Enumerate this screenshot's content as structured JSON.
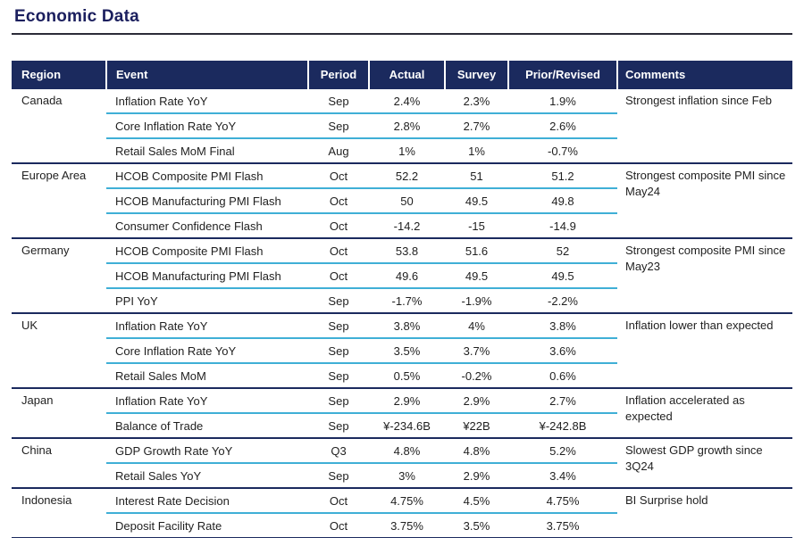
{
  "page": {
    "title": "Economic Data"
  },
  "colors": {
    "header_bg": "#1B2A5E",
    "header_text": "#FFFFFF",
    "group_divider": "#1B2A5E",
    "row_divider": "#3FAFD6",
    "title_text": "#1B1F5E",
    "title_rule": "#2B2B38",
    "body_text": "#1F1F1F"
  },
  "table": {
    "columns": [
      "Region",
      "Event",
      "Period",
      "Actual",
      "Survey",
      "Prior/Revised",
      "Comments"
    ],
    "groups": [
      {
        "region": "Canada",
        "comment": "Strongest inflation since Feb",
        "rows": [
          {
            "event": "Inflation Rate YoY",
            "period": "Sep",
            "actual": "2.4%",
            "survey": "2.3%",
            "prior": "1.9%"
          },
          {
            "event": "Core Inflation Rate YoY",
            "period": "Sep",
            "actual": "2.8%",
            "survey": "2.7%",
            "prior": "2.6%"
          },
          {
            "event": "Retail Sales MoM Final",
            "period": "Aug",
            "actual": "1%",
            "survey": "1%",
            "prior": "-0.7%"
          }
        ]
      },
      {
        "region": "Europe Area",
        "comment": "Strongest composite PMI since May24",
        "rows": [
          {
            "event": "HCOB Composite PMI Flash",
            "period": "Oct",
            "actual": "52.2",
            "survey": "51",
            "prior": "51.2"
          },
          {
            "event": "HCOB Manufacturing PMI Flash",
            "period": "Oct",
            "actual": "50",
            "survey": "49.5",
            "prior": "49.8"
          },
          {
            "event": "Consumer Confidence Flash",
            "period": "Oct",
            "actual": "-14.2",
            "survey": "-15",
            "prior": "-14.9"
          }
        ]
      },
      {
        "region": "Germany",
        "comment": "Strongest composite PMI since May23",
        "rows": [
          {
            "event": "HCOB Composite PMI Flash",
            "period": "Oct",
            "actual": "53.8",
            "survey": "51.6",
            "prior": "52"
          },
          {
            "event": "HCOB Manufacturing PMI Flash",
            "period": "Oct",
            "actual": "49.6",
            "survey": "49.5",
            "prior": "49.5"
          },
          {
            "event": "PPI YoY",
            "period": "Sep",
            "actual": "-1.7%",
            "survey": "-1.9%",
            "prior": "-2.2%"
          }
        ]
      },
      {
        "region": "UK",
        "comment": "Inflation lower than expected",
        "rows": [
          {
            "event": "Inflation Rate YoY",
            "period": "Sep",
            "actual": "3.8%",
            "survey": "4%",
            "prior": "3.8%"
          },
          {
            "event": "Core Inflation Rate YoY",
            "period": "Sep",
            "actual": "3.5%",
            "survey": "3.7%",
            "prior": "3.6%"
          },
          {
            "event": "Retail Sales MoM",
            "period": "Sep",
            "actual": "0.5%",
            "survey": "-0.2%",
            "prior": "0.6%"
          }
        ]
      },
      {
        "region": "Japan",
        "comment": "Inflation accelerated as expected",
        "rows": [
          {
            "event": "Inflation Rate YoY",
            "period": "Sep",
            "actual": "2.9%",
            "survey": "2.9%",
            "prior": "2.7%"
          },
          {
            "event": "Balance of Trade",
            "period": "Sep",
            "actual": "¥-234.6B",
            "survey": "¥22B",
            "prior": "¥-242.8B"
          }
        ]
      },
      {
        "region": "China",
        "comment": "Slowest GDP growth since 3Q24",
        "rows": [
          {
            "event": "GDP Growth Rate YoY",
            "period": "Q3",
            "actual": "4.8%",
            "survey": "4.8%",
            "prior": "5.2%"
          },
          {
            "event": "Retail Sales YoY",
            "period": "Sep",
            "actual": "3%",
            "survey": "2.9%",
            "prior": "3.4%"
          }
        ]
      },
      {
        "region": "Indonesia",
        "comment": "BI Surprise hold",
        "rows": [
          {
            "event": "Interest Rate Decision",
            "period": "Oct",
            "actual": "4.75%",
            "survey": "4.5%",
            "prior": "4.75%"
          },
          {
            "event": "Deposit Facility Rate",
            "period": "Oct",
            "actual": "3.75%",
            "survey": "3.5%",
            "prior": "3.75%"
          }
        ]
      }
    ]
  }
}
